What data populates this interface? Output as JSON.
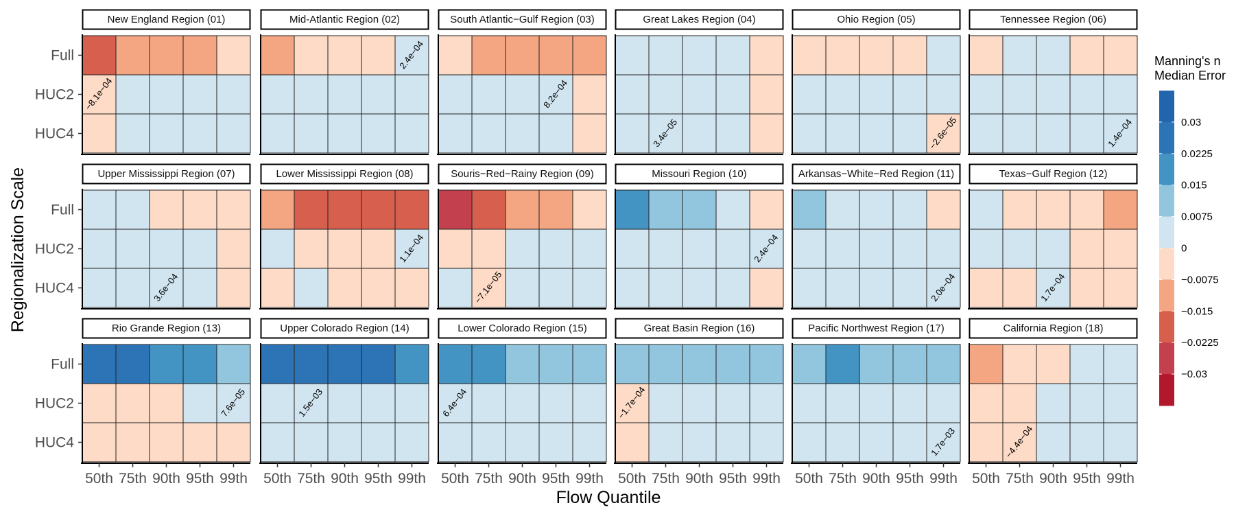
{
  "chart_data": {
    "type": "heatmap",
    "xlabel": "Flow Quantile",
    "ylabel": "Regionalization Scale",
    "x_categories": [
      "50th",
      "75th",
      "90th",
      "95th",
      "99th"
    ],
    "y_categories": [
      "Full",
      "HUC2",
      "HUC4"
    ],
    "legend": {
      "title_lines": [
        "Manning's n",
        "Median Error"
      ],
      "placement": "right",
      "tick_labels": [
        "0.03",
        "0.0225",
        "0.015",
        "0.0075",
        "0",
        "−0.0075",
        "−0.015",
        "−0.0225",
        "−0.03"
      ],
      "bins": [
        {
          "lower": 0.03,
          "upper": 0.0375,
          "color": "#2166ac"
        },
        {
          "lower": 0.0225,
          "upper": 0.03,
          "color": "#2d74b7"
        },
        {
          "lower": 0.015,
          "upper": 0.0225,
          "color": "#4393c3"
        },
        {
          "lower": 0.0075,
          "upper": 0.015,
          "color": "#92c5de"
        },
        {
          "lower": 0,
          "upper": 0.0075,
          "color": "#d1e5f0"
        },
        {
          "lower": -0.0075,
          "upper": 0,
          "color": "#fddbc7"
        },
        {
          "lower": -0.015,
          "upper": -0.0075,
          "color": "#f4a582"
        },
        {
          "lower": -0.0225,
          "upper": -0.015,
          "color": "#d6604d"
        },
        {
          "lower": -0.03,
          "upper": -0.0225,
          "color": "#c3414f"
        },
        {
          "lower": -0.0375,
          "upper": -0.03,
          "color": "#b2182b"
        }
      ]
    },
    "panels": [
      {
        "title": "New England Region (01)",
        "values": [
          [
            -0.02,
            -0.01,
            -0.01,
            -0.01,
            -0.004
          ],
          [
            -0.00081,
            0.004,
            0.004,
            0.004,
            0.004
          ],
          [
            -0.004,
            0.004,
            0.004,
            0.004,
            0.004
          ]
        ],
        "annotation": {
          "text": "−8.1e−04",
          "row": 1,
          "col": 0
        }
      },
      {
        "title": "Mid-Atlantic Region (02)",
        "values": [
          [
            -0.01,
            -0.004,
            -0.004,
            -0.004,
            0.00024
          ],
          [
            0.004,
            0.004,
            0.004,
            0.004,
            0.004
          ],
          [
            0.004,
            0.004,
            0.004,
            0.004,
            0.004
          ]
        ],
        "annotation": {
          "text": "2.4e−04",
          "row": 0,
          "col": 4
        }
      },
      {
        "title": "South Atlantic−Gulf Region (03)",
        "values": [
          [
            -0.004,
            -0.01,
            -0.01,
            -0.01,
            -0.01
          ],
          [
            0.004,
            0.004,
            0.004,
            0.00082,
            -0.004
          ],
          [
            0.004,
            0.004,
            0.004,
            0.004,
            -0.004
          ]
        ],
        "annotation": {
          "text": "8.2e−04",
          "row": 1,
          "col": 3
        }
      },
      {
        "title": "Great Lakes Region (04)",
        "values": [
          [
            0.004,
            0.004,
            0.004,
            0.004,
            -0.004
          ],
          [
            0.004,
            0.004,
            0.004,
            0.004,
            -0.004
          ],
          [
            0.004,
            3.4e-05,
            0.004,
            0.004,
            -0.004
          ]
        ],
        "annotation": {
          "text": "3.4e−05",
          "row": 2,
          "col": 1
        }
      },
      {
        "title": "Ohio Region (05)",
        "values": [
          [
            -0.004,
            -0.004,
            -0.004,
            -0.004,
            0.004
          ],
          [
            0.004,
            0.004,
            0.004,
            0.004,
            0.004
          ],
          [
            0.004,
            0.004,
            0.004,
            0.004,
            -2.6e-05
          ]
        ],
        "annotation": {
          "text": "−2.6e−05",
          "row": 2,
          "col": 4
        }
      },
      {
        "title": "Tennessee Region (06)",
        "values": [
          [
            -0.004,
            0.004,
            0.004,
            -0.004,
            -0.004
          ],
          [
            0.004,
            0.004,
            0.004,
            0.004,
            0.004
          ],
          [
            0.004,
            0.004,
            0.004,
            0.004,
            0.00014
          ]
        ],
        "annotation": {
          "text": "1.4e−04",
          "row": 2,
          "col": 4
        }
      },
      {
        "title": "Upper Mississippi Region (07)",
        "values": [
          [
            0.004,
            0.004,
            -0.004,
            -0.004,
            -0.004
          ],
          [
            0.004,
            0.004,
            0.004,
            0.004,
            -0.004
          ],
          [
            0.004,
            0.004,
            0.00036,
            0.004,
            -0.004
          ]
        ],
        "annotation": {
          "text": "3.6e−04",
          "row": 2,
          "col": 2
        }
      },
      {
        "title": "Lower Mississippi Region (08)",
        "values": [
          [
            -0.01,
            -0.02,
            -0.02,
            -0.02,
            -0.02
          ],
          [
            0.004,
            -0.004,
            -0.004,
            -0.004,
            0.00011
          ],
          [
            -0.004,
            0.004,
            -0.004,
            -0.004,
            -0.004
          ]
        ],
        "annotation": {
          "text": "1.1e−04",
          "row": 1,
          "col": 4
        }
      },
      {
        "title": "Souris−Red−Rainy Region (09)",
        "values": [
          [
            -0.027,
            -0.02,
            -0.01,
            -0.01,
            -0.004
          ],
          [
            -0.004,
            -0.004,
            0.004,
            0.004,
            0.004
          ],
          [
            0.004,
            -7.1e-05,
            0.004,
            0.004,
            0.004
          ]
        ],
        "annotation": {
          "text": "−7.1e−05",
          "row": 2,
          "col": 1
        }
      },
      {
        "title": "Missouri Region (10)",
        "values": [
          [
            0.02,
            0.01,
            0.01,
            0.004,
            -0.004
          ],
          [
            0.004,
            0.004,
            0.004,
            0.004,
            0.00024
          ],
          [
            0.004,
            0.004,
            0.004,
            0.004,
            -0.004
          ]
        ],
        "annotation": {
          "text": "2.4e−04",
          "row": 1,
          "col": 4
        }
      },
      {
        "title": "Arkansas−White−Red Region (11)",
        "values": [
          [
            0.01,
            0.004,
            0.004,
            0.004,
            -0.004
          ],
          [
            0.004,
            0.004,
            0.004,
            0.004,
            0.004
          ],
          [
            0.004,
            0.004,
            0.004,
            0.004,
            0.0002
          ]
        ],
        "annotation": {
          "text": "2.0e−04",
          "row": 2,
          "col": 4
        }
      },
      {
        "title": "Texas−Gulf Region (12)",
        "values": [
          [
            0.004,
            -0.004,
            -0.004,
            -0.004,
            -0.01
          ],
          [
            0.004,
            0.004,
            0.004,
            -0.004,
            -0.004
          ],
          [
            -0.004,
            -0.004,
            0.00017,
            -0.004,
            -0.004
          ]
        ],
        "annotation": {
          "text": "1.7e−04",
          "row": 2,
          "col": 2
        }
      },
      {
        "title": "Rio Grande Region (13)",
        "values": [
          [
            0.026,
            0.026,
            0.019,
            0.019,
            0.011
          ],
          [
            -0.004,
            -0.004,
            -0.004,
            0.004,
            7.6e-05
          ],
          [
            -0.004,
            -0.004,
            -0.004,
            -0.004,
            -0.004
          ]
        ],
        "annotation": {
          "text": "7.6e−05",
          "row": 1,
          "col": 4
        }
      },
      {
        "title": "Upper Colorado Region (14)",
        "values": [
          [
            0.026,
            0.026,
            0.026,
            0.026,
            0.019
          ],
          [
            0.004,
            0.0015,
            0.004,
            0.004,
            0.004
          ],
          [
            0.004,
            0.004,
            0.004,
            0.004,
            0.004
          ]
        ],
        "annotation": {
          "text": "1.5e−03",
          "row": 1,
          "col": 1
        }
      },
      {
        "title": "Lower Colorado Region (15)",
        "values": [
          [
            0.019,
            0.019,
            0.011,
            0.011,
            0.011
          ],
          [
            0.00064,
            0.004,
            0.004,
            0.004,
            0.004
          ],
          [
            0.004,
            0.004,
            0.004,
            0.004,
            0.004
          ]
        ],
        "annotation": {
          "text": "6.4e−04",
          "row": 1,
          "col": 0
        }
      },
      {
        "title": "Great Basin Region (16)",
        "values": [
          [
            0.011,
            0.011,
            0.011,
            0.011,
            0.011
          ],
          [
            -0.00017,
            0.004,
            0.004,
            0.004,
            0.004
          ],
          [
            -0.004,
            0.004,
            0.004,
            0.004,
            0.004
          ]
        ],
        "annotation": {
          "text": "−1.7e−04",
          "row": 1,
          "col": 0
        }
      },
      {
        "title": "Pacific Northwest Region (17)",
        "values": [
          [
            0.011,
            0.019,
            0.011,
            0.011,
            0.011
          ],
          [
            0.004,
            0.004,
            0.004,
            0.004,
            0.004
          ],
          [
            0.004,
            0.004,
            0.004,
            0.004,
            0.0017
          ]
        ],
        "annotation": {
          "text": "1.7e−03",
          "row": 2,
          "col": 4
        }
      },
      {
        "title": "California Region (18)",
        "values": [
          [
            -0.01,
            -0.004,
            -0.004,
            0.004,
            0.004
          ],
          [
            -0.004,
            -0.004,
            0.004,
            0.004,
            0.004
          ],
          [
            -0.004,
            -0.00044,
            0.004,
            0.004,
            0.004
          ]
        ],
        "annotation": {
          "text": "−4.4e−04",
          "row": 2,
          "col": 1
        }
      }
    ]
  }
}
